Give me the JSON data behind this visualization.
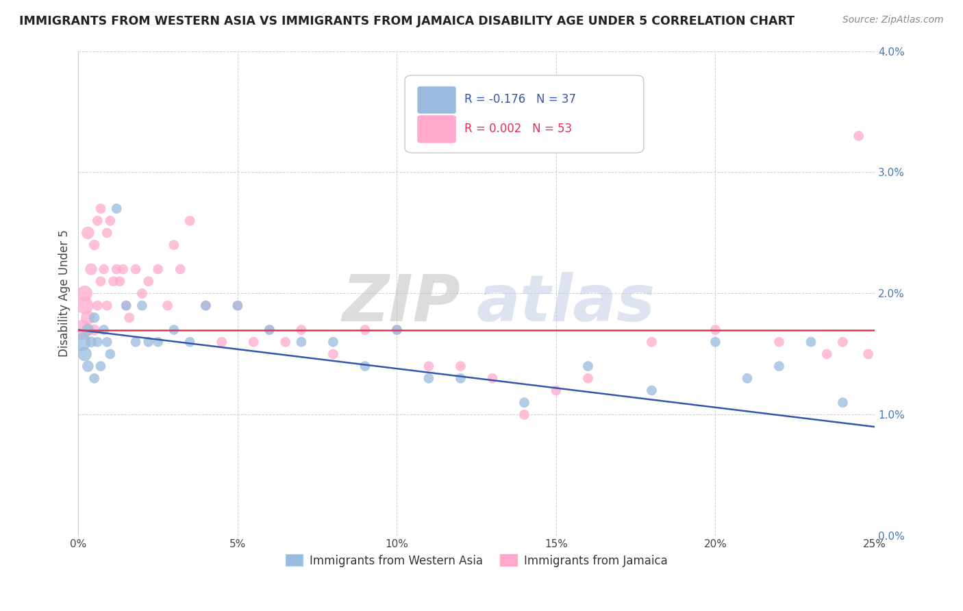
{
  "title": "IMMIGRANTS FROM WESTERN ASIA VS IMMIGRANTS FROM JAMAICA DISABILITY AGE UNDER 5 CORRELATION CHART",
  "source": "Source: ZipAtlas.com",
  "ylabel": "Disability Age Under 5",
  "legend1_label": "Immigrants from Western Asia",
  "legend2_label": "Immigrants from Jamaica",
  "legend_r1": "R = -0.176",
  "legend_n1": "N = 37",
  "legend_r2": "R = 0.002",
  "legend_n2": "N = 53",
  "xmin": 0.0,
  "xmax": 0.25,
  "ymin": 0.0,
  "ymax": 0.04,
  "color_blue": "#99BBDD",
  "color_pink": "#FFAACC",
  "color_blue_line": "#3355AA",
  "color_pink_line": "#DD3355",
  "watermark_zip": "ZIP",
  "watermark_atlas": "atlas",
  "blue_x": [
    0.001,
    0.002,
    0.003,
    0.003,
    0.004,
    0.005,
    0.005,
    0.006,
    0.007,
    0.008,
    0.009,
    0.01,
    0.012,
    0.015,
    0.018,
    0.02,
    0.022,
    0.025,
    0.03,
    0.035,
    0.04,
    0.05,
    0.06,
    0.07,
    0.08,
    0.09,
    0.1,
    0.11,
    0.12,
    0.14,
    0.16,
    0.18,
    0.2,
    0.21,
    0.22,
    0.23,
    0.24
  ],
  "blue_y": [
    0.016,
    0.015,
    0.017,
    0.014,
    0.016,
    0.018,
    0.013,
    0.016,
    0.014,
    0.017,
    0.016,
    0.015,
    0.027,
    0.019,
    0.016,
    0.019,
    0.016,
    0.016,
    0.017,
    0.016,
    0.019,
    0.019,
    0.017,
    0.016,
    0.016,
    0.014,
    0.017,
    0.013,
    0.013,
    0.011,
    0.014,
    0.012,
    0.016,
    0.013,
    0.014,
    0.016,
    0.011
  ],
  "blue_sizes": [
    350,
    200,
    150,
    130,
    120,
    110,
    100,
    100,
    100,
    100,
    100,
    100,
    100,
    100,
    100,
    100,
    100,
    100,
    100,
    100,
    100,
    100,
    100,
    100,
    100,
    100,
    100,
    100,
    100,
    100,
    100,
    100,
    100,
    100,
    100,
    100,
    100
  ],
  "pink_x": [
    0.001,
    0.002,
    0.002,
    0.003,
    0.003,
    0.004,
    0.005,
    0.005,
    0.006,
    0.006,
    0.007,
    0.007,
    0.008,
    0.009,
    0.009,
    0.01,
    0.011,
    0.012,
    0.013,
    0.014,
    0.015,
    0.016,
    0.018,
    0.02,
    0.022,
    0.025,
    0.028,
    0.03,
    0.032,
    0.035,
    0.04,
    0.045,
    0.05,
    0.055,
    0.06,
    0.065,
    0.07,
    0.08,
    0.09,
    0.1,
    0.11,
    0.12,
    0.13,
    0.14,
    0.15,
    0.16,
    0.18,
    0.2,
    0.22,
    0.235,
    0.24,
    0.245,
    0.248
  ],
  "pink_y": [
    0.017,
    0.019,
    0.02,
    0.018,
    0.025,
    0.022,
    0.017,
    0.024,
    0.019,
    0.026,
    0.021,
    0.027,
    0.022,
    0.019,
    0.025,
    0.026,
    0.021,
    0.022,
    0.021,
    0.022,
    0.019,
    0.018,
    0.022,
    0.02,
    0.021,
    0.022,
    0.019,
    0.024,
    0.022,
    0.026,
    0.019,
    0.016,
    0.019,
    0.016,
    0.017,
    0.016,
    0.017,
    0.015,
    0.017,
    0.017,
    0.014,
    0.014,
    0.013,
    0.01,
    0.012,
    0.013,
    0.016,
    0.017,
    0.016,
    0.015,
    0.016,
    0.033,
    0.015
  ],
  "pink_sizes": [
    400,
    300,
    250,
    200,
    160,
    140,
    120,
    110,
    100,
    100,
    100,
    100,
    100,
    100,
    100,
    100,
    100,
    100,
    100,
    100,
    100,
    100,
    100,
    100,
    100,
    100,
    100,
    100,
    100,
    100,
    100,
    100,
    100,
    100,
    100,
    100,
    100,
    100,
    100,
    100,
    100,
    100,
    100,
    100,
    100,
    100,
    100,
    100,
    100,
    100,
    100,
    100,
    100
  ]
}
